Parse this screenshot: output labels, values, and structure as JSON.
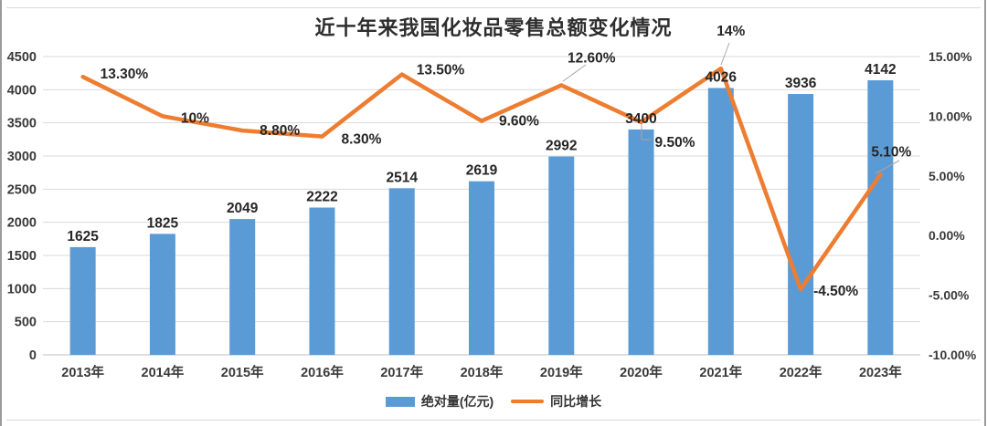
{
  "chart_data": {
    "type": "bar+line combo",
    "title": "近十年来我国化妆品零售总额变化情况",
    "categories": [
      "2013年",
      "2014年",
      "2015年",
      "2016年",
      "2017年",
      "2018年",
      "2019年",
      "2020年",
      "2021年",
      "2022年",
      "2023年"
    ],
    "series": [
      {
        "name": "绝对量(亿元)",
        "type": "bar",
        "axis": "left",
        "color": "#5b9bd5",
        "values": [
          1625,
          1825,
          2049,
          2222,
          2514,
          2619,
          2992,
          3400,
          4026,
          3936,
          4142
        ],
        "labels": [
          "1625",
          "1825",
          "2049",
          "2222",
          "2514",
          "2619",
          "2992",
          "3400",
          "4026",
          "3936",
          "4142"
        ]
      },
      {
        "name": "同比增长",
        "type": "line",
        "axis": "right",
        "color": "#ed7d31",
        "values": [
          13.3,
          10,
          8.8,
          8.3,
          13.5,
          9.6,
          12.6,
          9.5,
          14,
          -4.5,
          5.1
        ],
        "labels": [
          "13.30%",
          "10%",
          "8.80%",
          "8.30%",
          "13.50%",
          "9.60%",
          "12.60%",
          "9.50%",
          "14%",
          "-4.50%",
          "5.10%"
        ]
      }
    ],
    "left_axis": {
      "min": 0,
      "max": 4500,
      "step": 500,
      "tick_labels": [
        "4500",
        "4000",
        "3500",
        "3000",
        "2500",
        "2000",
        "1500",
        "1000",
        "500",
        "0"
      ]
    },
    "right_axis": {
      "min": -10,
      "max": 15,
      "step": 5,
      "tick_labels": [
        "15.00%",
        "10.00%",
        "5.00%",
        "0.00%",
        "-5.00%",
        "-10.00%"
      ]
    },
    "gridlines": "horizontal",
    "legend_position": "bottom"
  },
  "colors": {
    "bar": "#5b9bd5",
    "line": "#ed7d31",
    "grid": "#d9d9d9",
    "axis_line": "#bfbfbf",
    "tick_text": "#3a3a3a",
    "data_label": "#262626",
    "leader": "#a6a6a6",
    "frame_side": "#9b9b9b",
    "frame_topbottom": "#d9d9d9"
  }
}
